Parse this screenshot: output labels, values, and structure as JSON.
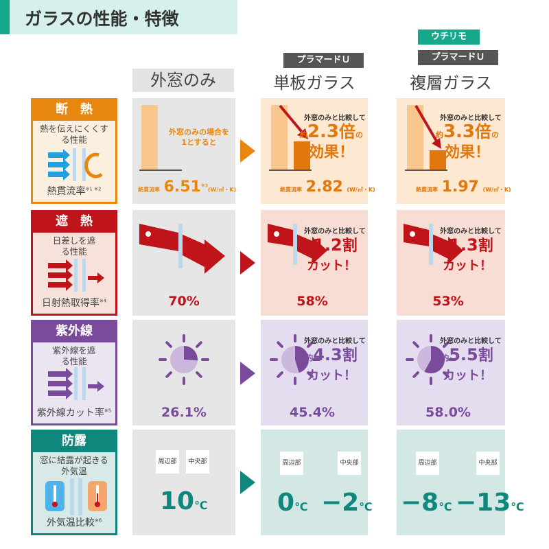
{
  "header": {
    "title": "ガラスの性能・特徴"
  },
  "columns": [
    {
      "label": "外窓のみ"
    },
    {
      "tags": [
        "プラマードＵ"
      ],
      "label": "単板ガラス"
    },
    {
      "tags": [
        "ウチリモ",
        "プラマードＵ"
      ],
      "label": "複層ガラス"
    }
  ],
  "colors": {
    "insulation": "#e8870f",
    "solar": "#c0141b",
    "uv": "#7a4a9b",
    "condensation": "#0f877d"
  },
  "rows": {
    "insulation": {
      "title": "断　熱",
      "desc": "熱を伝えにくくする性能",
      "footer": "熱貫流率",
      "note": "※1 ※2",
      "base_text": "外窓のみの場合を1とすると",
      "metric_label": "熱貫流率",
      "unit": "(W/㎡・K)",
      "base_value": "6.51",
      "base_note": "※3",
      "compare": "外窓のみと比較して",
      "about": "約",
      "suffix": "倍",
      "of": "の",
      "effect": "効果！",
      "values": [
        {
          "value": "2.82",
          "ratio": "2.3"
        },
        {
          "value": "1.97",
          "ratio": "3.3"
        }
      ]
    },
    "solar": {
      "title": "遮　熱",
      "desc": "日差しを遮る性能",
      "footer": "日射熱取得率",
      "note": "※4",
      "compare": "外窓のみと比較して",
      "about": "約",
      "suffix": "割",
      "cut": "カット！",
      "values": [
        "70%",
        "58%",
        "53%"
      ],
      "ratios": [
        "1.2",
        "1.3"
      ]
    },
    "uv": {
      "title": "紫外線",
      "desc": "紫外線を遮る性能",
      "footer": "紫外線カット率",
      "note": "※5",
      "compare": "外窓のみと比較して",
      "about": "約",
      "suffix": "割",
      "cut": "カット！",
      "values": [
        "26.1%",
        "45.4%",
        "58.0%"
      ],
      "ratios": [
        "4.3",
        "5.5"
      ]
    },
    "condensation": {
      "title": "防露",
      "desc": "窓に結露が起きる外気温",
      "footer": "外気温比較",
      "note": "※6",
      "edge": "周辺部",
      "center": "中央部",
      "unit": "℃",
      "values": [
        "10",
        "0",
        "−2",
        "−8",
        "−13"
      ]
    }
  }
}
